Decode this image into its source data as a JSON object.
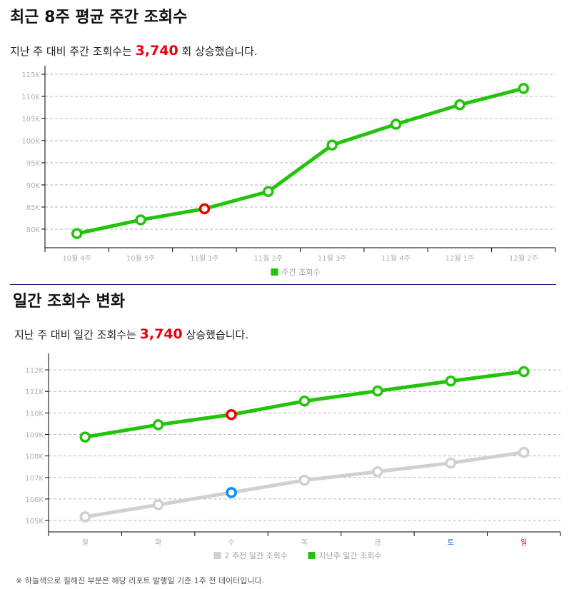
{
  "weekly": {
    "title": "최근 8주 평균 주간 조회수",
    "summary_prefix": "지난 주 대비 주간 조회수는 ",
    "summary_value": "3,740",
    "summary_suffix": " 회 상승했습니다."
  },
  "daily": {
    "title": "일간 조회수 변화",
    "summary_prefix": "지난 주 대비 일간 조회수는 ",
    "summary_value": "3,740",
    "summary_suffix": " 상승했습니다."
  },
  "footnote": "※ 하늘색으로 칠해진 부분은 해당 리포트 발행일 기준 1주 전 데이터입니다.",
  "colors": {
    "green": "#22c40a",
    "gray": "#d0d0d0",
    "red": "#ee0000",
    "blue": "#0a8ff0",
    "sat": "#1a6fe0",
    "sun": "#e8000b",
    "axis_text": "#a9b0ba"
  },
  "chart_data": [
    {
      "type": "line",
      "categories": [
        "10월 4주",
        "10월 5주",
        "11월 1주",
        "11월 2주",
        "11월 3주",
        "11월 4주",
        "12월 1주",
        "12월 2주"
      ],
      "series": [
        {
          "name": "주간 조회수",
          "values": [
            79.0,
            82.1,
            84.6,
            88.5,
            99.0,
            103.7,
            108.1,
            111.8
          ],
          "highlight_index": 2
        }
      ],
      "yticks": [
        80,
        85,
        90,
        95,
        100,
        105,
        110,
        115
      ],
      "ytick_labels": [
        "80K",
        "85K",
        "90K",
        "95K",
        "100K",
        "105K",
        "110K",
        "115K"
      ],
      "ylim": [
        75.8,
        115
      ],
      "grid": true,
      "legend": "bottom"
    },
    {
      "type": "line",
      "categories": [
        "월",
        "화",
        "수",
        "목",
        "금",
        "토",
        "일"
      ],
      "series": [
        {
          "name": "2 주전 일간 조회수",
          "values": [
            105.17,
            105.73,
            106.3,
            106.87,
            107.27,
            107.67,
            108.17
          ],
          "highlight_index": 2
        },
        {
          "name": "지난주 일간 조회수",
          "values": [
            108.88,
            109.45,
            109.92,
            110.55,
            111.02,
            111.48,
            111.92
          ],
          "highlight_index": 2
        }
      ],
      "yticks": [
        105,
        106,
        107,
        108,
        109,
        110,
        111,
        112
      ],
      "ytick_labels": [
        "105K",
        "106K",
        "107K",
        "108K",
        "109K",
        "110K",
        "111K",
        "112K"
      ],
      "ylim": [
        104.47,
        112.6
      ],
      "grid": true,
      "legend": "bottom"
    }
  ]
}
